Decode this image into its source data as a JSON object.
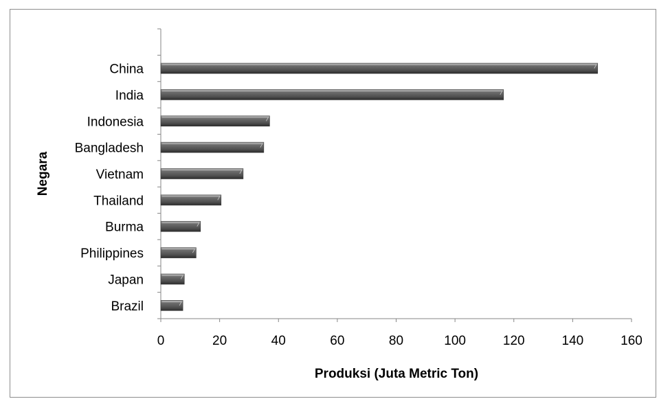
{
  "chart_data": {
    "type": "bar",
    "orientation": "horizontal",
    "categories": [
      "China",
      "India",
      "Indonesia",
      "Bangladesh",
      "Vietnam",
      "Thailand",
      "Burma",
      "Philippines",
      "Japan",
      "Brazil"
    ],
    "values": [
      148.5,
      116.5,
      37,
      35,
      28,
      20.5,
      13.5,
      12,
      8,
      7.5
    ],
    "xlabel": "Produksi (Juta Metric Ton)",
    "ylabel": "Negara",
    "xlim": [
      0,
      160
    ],
    "xticks": [
      "0",
      "20",
      "40",
      "60",
      "80",
      "100",
      "120",
      "140",
      "160"
    ],
    "grid": false,
    "legend": false,
    "bar_color": "#595959"
  }
}
